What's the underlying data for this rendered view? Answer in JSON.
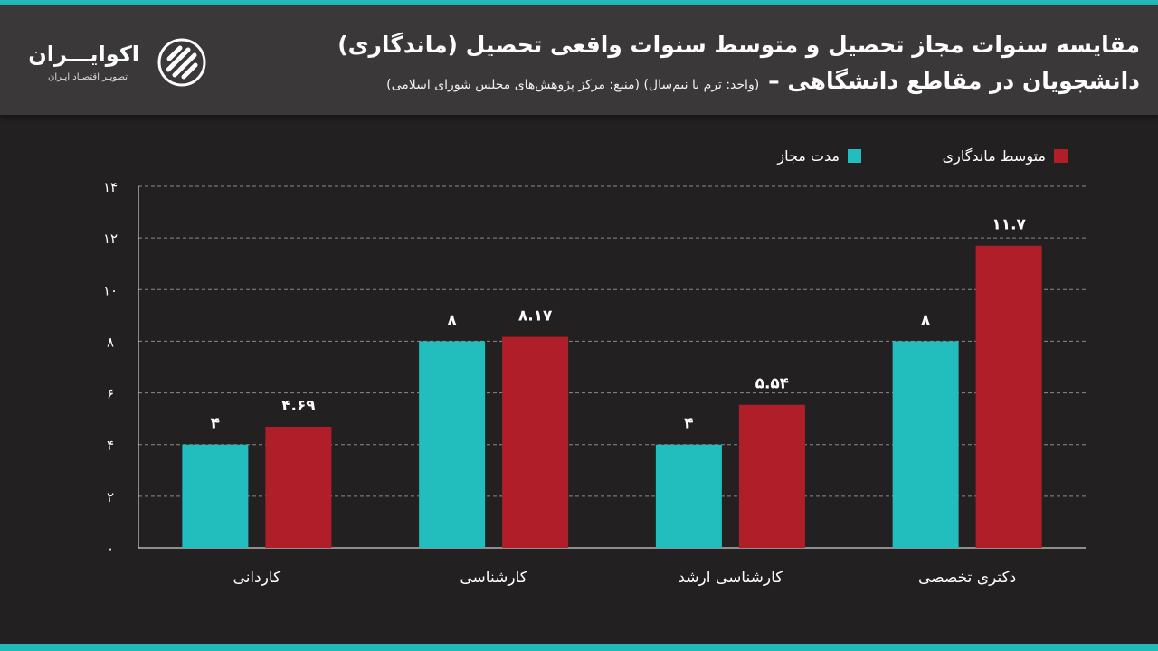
{
  "header": {
    "title_line1": "مقایسه سنوات مجاز تحصیل و متوسط سنوات واقعی تحصیل (ماندگاری)",
    "title_line2": "دانشجویان در مقاطع دانشگاهی –",
    "subtitle": "(واحد: ترم یا نیم‌سال) (منبع: مرکز پژوهش‌های مجلس شورای اسلامی)"
  },
  "brand": {
    "name": "اکوایـــران",
    "tagline": "تصویـر اقتصـاد ایـران"
  },
  "colors": {
    "allowed": "#22bdbd",
    "average": "#b01f29",
    "background": "#222021",
    "header": "#3a3839",
    "accent": "#22b9b9"
  },
  "chart_data": {
    "type": "bar",
    "categories": [
      "کاردانی",
      "کارشناسی",
      "کارشناسی ارشد",
      "دکتری تخصصی"
    ],
    "series": [
      {
        "name": "مدت مجاز",
        "values": [
          4,
          8,
          4,
          8
        ],
        "labels": [
          "۴",
          "۸",
          "۴",
          "۸"
        ]
      },
      {
        "name": "متوسط ماندگاری",
        "values": [
          4.69,
          8.17,
          5.54,
          11.7
        ],
        "labels": [
          "۴.۶۹",
          "۸.۱۷",
          "۵.۵۴",
          "۱۱.۷"
        ]
      }
    ],
    "y_ticks": [
      0,
      2,
      4,
      6,
      8,
      10,
      12,
      14
    ],
    "y_tick_labels": [
      "۰",
      "۲",
      "۴",
      "۶",
      "۸",
      "۱۰",
      "۱۲",
      "۱۴"
    ],
    "ylim": [
      0,
      14
    ],
    "grid": true,
    "legend_position": "top-right"
  }
}
